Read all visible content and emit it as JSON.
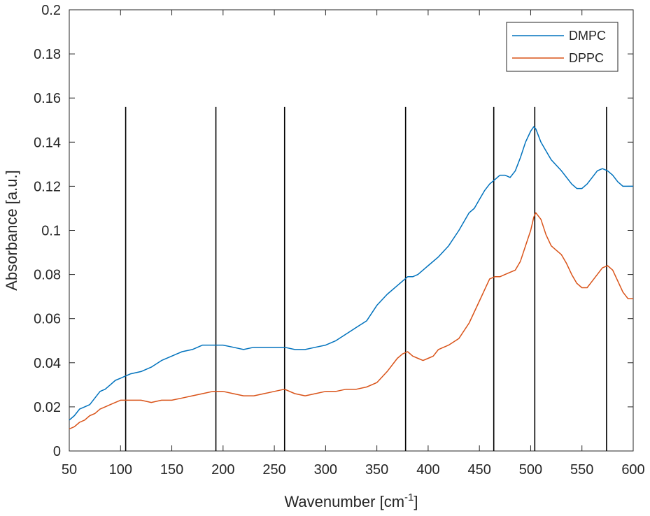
{
  "chart_data": {
    "type": "line",
    "title": "",
    "xlabel": "Wavenumber [cm",
    "xlabel_sup": "-1",
    "xlabel_suffix": "]",
    "ylabel": "Absorbance [a.u.]",
    "xlim": [
      50,
      600
    ],
    "ylim": [
      0,
      0.2
    ],
    "xticks": [
      50,
      100,
      150,
      200,
      250,
      300,
      350,
      400,
      450,
      500,
      550,
      600
    ],
    "xtick_labels": [
      "50",
      "100",
      "150",
      "200",
      "250",
      "300",
      "350",
      "400",
      "450",
      "500",
      "550",
      "600"
    ],
    "yticks": [
      0,
      0.02,
      0.04,
      0.06,
      0.08,
      0.1,
      0.12,
      0.14,
      0.16,
      0.18,
      0.2
    ],
    "ytick_labels": [
      "0",
      "0.02",
      "0.04",
      "0.06",
      "0.08",
      "0.1",
      "0.12",
      "0.14",
      "0.16",
      "0.18",
      "0.2"
    ],
    "grid": false,
    "legend_position": "top-right",
    "series": [
      {
        "name": "DMPC",
        "color": "#0072BD",
        "x": [
          50,
          55,
          60,
          65,
          70,
          75,
          80,
          85,
          90,
          95,
          100,
          105,
          110,
          120,
          130,
          140,
          150,
          160,
          170,
          180,
          190,
          200,
          210,
          220,
          230,
          240,
          250,
          260,
          270,
          280,
          290,
          300,
          310,
          320,
          330,
          340,
          350,
          360,
          370,
          375,
          380,
          385,
          390,
          400,
          410,
          420,
          430,
          440,
          445,
          450,
          455,
          460,
          465,
          470,
          475,
          480,
          485,
          490,
          495,
          500,
          503,
          505,
          510,
          515,
          520,
          530,
          540,
          545,
          550,
          555,
          560,
          565,
          570,
          575,
          580,
          585,
          590,
          595,
          600
        ],
        "y": [
          0.014,
          0.016,
          0.019,
          0.02,
          0.021,
          0.024,
          0.027,
          0.028,
          0.03,
          0.032,
          0.033,
          0.034,
          0.035,
          0.036,
          0.038,
          0.041,
          0.043,
          0.045,
          0.046,
          0.048,
          0.048,
          0.048,
          0.047,
          0.046,
          0.047,
          0.047,
          0.047,
          0.047,
          0.046,
          0.046,
          0.047,
          0.048,
          0.05,
          0.053,
          0.056,
          0.059,
          0.066,
          0.071,
          0.075,
          0.077,
          0.079,
          0.079,
          0.08,
          0.084,
          0.088,
          0.093,
          0.1,
          0.108,
          0.11,
          0.114,
          0.118,
          0.121,
          0.123,
          0.125,
          0.125,
          0.124,
          0.127,
          0.133,
          0.14,
          0.145,
          0.147,
          0.146,
          0.14,
          0.136,
          0.132,
          0.127,
          0.121,
          0.119,
          0.119,
          0.121,
          0.124,
          0.127,
          0.128,
          0.127,
          0.125,
          0.122,
          0.12,
          0.12,
          0.12
        ]
      },
      {
        "name": "DPPC",
        "color": "#D95319",
        "x": [
          50,
          55,
          60,
          65,
          70,
          75,
          80,
          85,
          90,
          95,
          100,
          105,
          110,
          120,
          130,
          140,
          150,
          160,
          170,
          180,
          190,
          200,
          210,
          220,
          230,
          240,
          250,
          260,
          270,
          280,
          290,
          300,
          310,
          320,
          330,
          340,
          350,
          360,
          370,
          375,
          380,
          385,
          390,
          395,
          400,
          405,
          410,
          420,
          430,
          440,
          450,
          455,
          460,
          465,
          470,
          475,
          480,
          485,
          490,
          495,
          500,
          503,
          505,
          510,
          515,
          520,
          525,
          530,
          535,
          540,
          545,
          550,
          555,
          560,
          565,
          570,
          575,
          580,
          585,
          590,
          595,
          600
        ],
        "y": [
          0.01,
          0.011,
          0.013,
          0.014,
          0.016,
          0.017,
          0.019,
          0.02,
          0.021,
          0.022,
          0.023,
          0.023,
          0.023,
          0.023,
          0.022,
          0.023,
          0.023,
          0.024,
          0.025,
          0.026,
          0.027,
          0.027,
          0.026,
          0.025,
          0.025,
          0.026,
          0.027,
          0.028,
          0.026,
          0.025,
          0.026,
          0.027,
          0.027,
          0.028,
          0.028,
          0.029,
          0.031,
          0.036,
          0.042,
          0.044,
          0.045,
          0.043,
          0.042,
          0.041,
          0.042,
          0.043,
          0.046,
          0.048,
          0.051,
          0.058,
          0.068,
          0.073,
          0.078,
          0.079,
          0.079,
          0.08,
          0.081,
          0.082,
          0.086,
          0.093,
          0.1,
          0.106,
          0.108,
          0.105,
          0.098,
          0.093,
          0.091,
          0.089,
          0.085,
          0.08,
          0.076,
          0.074,
          0.074,
          0.077,
          0.08,
          0.083,
          0.084,
          0.082,
          0.077,
          0.072,
          0.069,
          0.069
        ]
      }
    ],
    "vlines": {
      "color": "#000000",
      "x": [
        105,
        193,
        260,
        378,
        464,
        504,
        574
      ],
      "y_top": 0.156
    }
  }
}
